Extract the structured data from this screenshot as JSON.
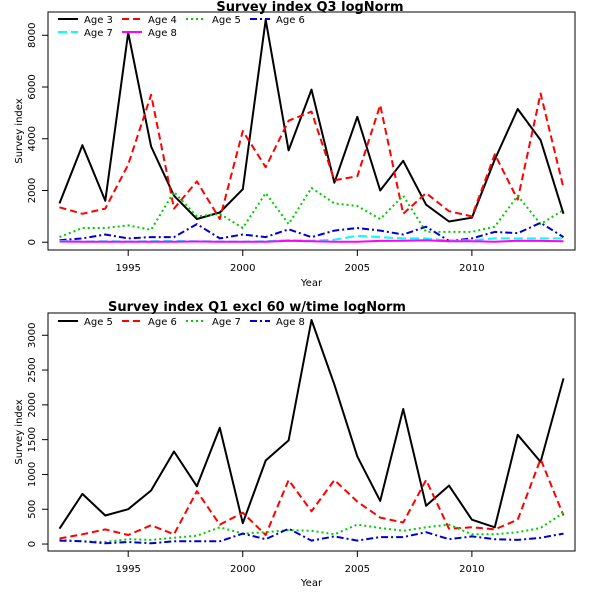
{
  "chart_data": [
    {
      "type": "line",
      "title": "Survey index Q3 logNorm",
      "xlabel": "Year",
      "ylabel": "Survey index",
      "xlim": [
        1991.5,
        2014.5
      ],
      "ylim": [
        -300,
        8900
      ],
      "xticks": [
        1995,
        2000,
        2005,
        2010
      ],
      "yticks": [
        0,
        2000,
        4000,
        6000,
        8000
      ],
      "legend_position": "top-left",
      "x": [
        1992,
        1993,
        1994,
        1995,
        1996,
        1997,
        1998,
        1999,
        2000,
        2001,
        2002,
        2003,
        2004,
        2005,
        2006,
        2007,
        2008,
        2009,
        2010,
        2011,
        2012,
        2013,
        2014
      ],
      "series": [
        {
          "name": "Age 3",
          "color": "#000000",
          "dash": "solid",
          "values": [
            1500,
            3750,
            1600,
            8100,
            3700,
            1800,
            900,
            1150,
            2050,
            8600,
            3550,
            5900,
            2300,
            4850,
            2000,
            3150,
            1450,
            800,
            950,
            3200,
            5150,
            3950,
            1100
          ]
        },
        {
          "name": "Age 4",
          "color": "#ff0000",
          "dash": "dashed",
          "values": [
            1350,
            1100,
            1300,
            3000,
            5700,
            1300,
            2350,
            900,
            4300,
            2900,
            4700,
            5050,
            2400,
            2550,
            5300,
            1100,
            1900,
            1200,
            1000,
            3400,
            1650,
            5750,
            2100
          ]
        },
        {
          "name": "Age 5",
          "color": "#00cc00",
          "dash": "dotted",
          "values": [
            200,
            550,
            550,
            650,
            480,
            1950,
            1000,
            1100,
            550,
            1900,
            700,
            2100,
            1500,
            1400,
            900,
            1800,
            400,
            400,
            400,
            600,
            1800,
            700,
            1250
          ]
        },
        {
          "name": "Age 6",
          "color": "#0000cc",
          "dash": "dashdot",
          "values": [
            80,
            150,
            300,
            150,
            200,
            200,
            700,
            150,
            300,
            200,
            500,
            200,
            450,
            550,
            450,
            300,
            600,
            50,
            150,
            400,
            350,
            750,
            200
          ]
        },
        {
          "name": "Age 7",
          "color": "#00ffff",
          "dash": "longdash",
          "values": [
            50,
            30,
            40,
            30,
            40,
            50,
            40,
            30,
            20,
            40,
            80,
            60,
            100,
            250,
            200,
            150,
            150,
            60,
            80,
            150,
            150,
            150,
            150
          ]
        },
        {
          "name": "Age 8",
          "color": "#ff00ff",
          "dash": "solid",
          "values": [
            30,
            20,
            20,
            20,
            20,
            20,
            30,
            20,
            20,
            20,
            60,
            40,
            20,
            20,
            50,
            60,
            80,
            40,
            40,
            20,
            60,
            50,
            40
          ]
        }
      ]
    },
    {
      "type": "line",
      "title": "Survey index Q1 excl 60 w/time logNorm",
      "xlabel": "Year",
      "ylabel": "Survey index",
      "xlim": [
        1991.5,
        2014.5
      ],
      "ylim": [
        -100,
        3320
      ],
      "xticks": [
        1995,
        2000,
        2005,
        2010
      ],
      "yticks": [
        0,
        500,
        1000,
        1500,
        2000,
        2500,
        3000
      ],
      "legend_position": "top-left",
      "x": [
        1992,
        1993,
        1994,
        1995,
        1996,
        1997,
        1998,
        1999,
        2000,
        2001,
        2002,
        2003,
        2004,
        2005,
        2006,
        2007,
        2008,
        2009,
        2010,
        2011,
        2012,
        2013,
        2014
      ],
      "series": [
        {
          "name": "Age 5",
          "color": "#000000",
          "dash": "solid",
          "values": [
            220,
            720,
            410,
            500,
            770,
            1330,
            830,
            1670,
            300,
            1200,
            1490,
            3220,
            2290,
            1260,
            620,
            1940,
            550,
            840,
            350,
            240,
            1570,
            1180,
            2380
          ]
        },
        {
          "name": "Age 6",
          "color": "#ff0000",
          "dash": "dashed",
          "values": [
            80,
            140,
            210,
            130,
            270,
            140,
            760,
            280,
            450,
            130,
            920,
            470,
            920,
            610,
            380,
            310,
            920,
            220,
            240,
            210,
            350,
            1220,
            410
          ]
        },
        {
          "name": "Age 7",
          "color": "#00cc00",
          "dash": "dotted",
          "values": [
            60,
            40,
            30,
            70,
            60,
            90,
            120,
            240,
            150,
            170,
            200,
            190,
            140,
            280,
            230,
            190,
            240,
            280,
            140,
            140,
            170,
            230,
            450
          ]
        },
        {
          "name": "Age 8",
          "color": "#0000cc",
          "dash": "dashdot",
          "values": [
            50,
            40,
            10,
            30,
            10,
            40,
            40,
            40,
            150,
            70,
            220,
            50,
            110,
            50,
            100,
            100,
            170,
            70,
            110,
            70,
            60,
            90,
            150
          ]
        }
      ]
    }
  ]
}
